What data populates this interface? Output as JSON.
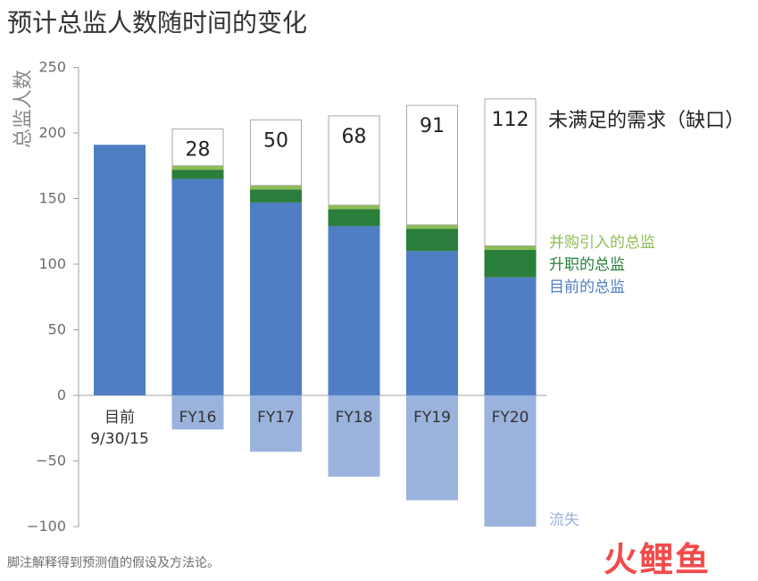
{
  "chart_data": {
    "type": "bar",
    "title": "预计总监人数随时间的变化",
    "ylabel": "总监人数",
    "ylim": [
      -100,
      250
    ],
    "yticks": [
      250,
      200,
      150,
      100,
      50,
      0,
      -50,
      -100
    ],
    "categories": [
      "目前",
      "FY16",
      "FY17",
      "FY18",
      "FY19",
      "FY20"
    ],
    "first_category_sublabel": "9/30/15",
    "series": [
      {
        "key": "current",
        "name": "目前的总监",
        "color": "#4f7ec5",
        "values": [
          191,
          165,
          147,
          129,
          110,
          90
        ]
      },
      {
        "key": "promoted",
        "name": "升职的总监",
        "color": "#2a7e3b",
        "values": [
          0,
          7,
          10,
          13,
          17,
          21
        ]
      },
      {
        "key": "acquired",
        "name": "并购引入的总监",
        "color": "#8cbd52",
        "values": [
          0,
          3,
          3,
          3,
          3,
          3
        ]
      },
      {
        "key": "gap",
        "name": "未满足的需求（缺口）",
        "color": "#ffffff",
        "values": [
          0,
          28,
          50,
          68,
          91,
          112
        ]
      },
      {
        "key": "attrition",
        "name": "流失",
        "color": "#9ab3dd",
        "values": [
          0,
          -26,
          -43,
          -62,
          -80,
          -100
        ]
      }
    ],
    "gap_labels": [
      "",
      "28",
      "50",
      "68",
      "91",
      "112"
    ],
    "grid": false,
    "legend_placement": "right"
  },
  "footnote": "脚注解释得到预测值的假设及方法论。",
  "watermark": "火鲤鱼"
}
